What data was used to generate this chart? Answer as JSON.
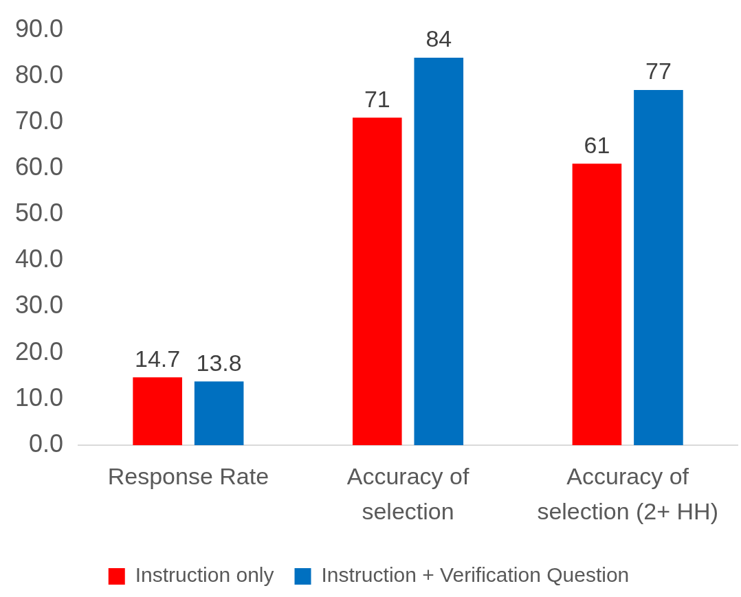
{
  "chart_data": {
    "type": "bar",
    "categories": [
      "Response Rate",
      "Accuracy of selection",
      "Accuracy of selection (2+ HH)"
    ],
    "series": [
      {
        "name": "Instruction only",
        "color": "#ff0000",
        "values": [
          14.7,
          71,
          61
        ]
      },
      {
        "name": "Instruction + Verification Question",
        "color": "#0070c0",
        "values": [
          13.8,
          84,
          77
        ]
      }
    ],
    "ylim": [
      0,
      90
    ],
    "yticks": [
      {
        "value": 0,
        "label": "0.0"
      },
      {
        "value": 10,
        "label": "10.0"
      },
      {
        "value": 20,
        "label": "20.0"
      },
      {
        "value": 30,
        "label": "30.0"
      },
      {
        "value": 40,
        "label": "40.0"
      },
      {
        "value": 50,
        "label": "50.0"
      },
      {
        "value": 60,
        "label": "60.0"
      },
      {
        "value": 70,
        "label": "70.0"
      },
      {
        "value": 80,
        "label": "80.0"
      },
      {
        "value": 90,
        "label": "90.0"
      }
    ],
    "grid": false,
    "legend": "bottom",
    "data_labels": true
  }
}
